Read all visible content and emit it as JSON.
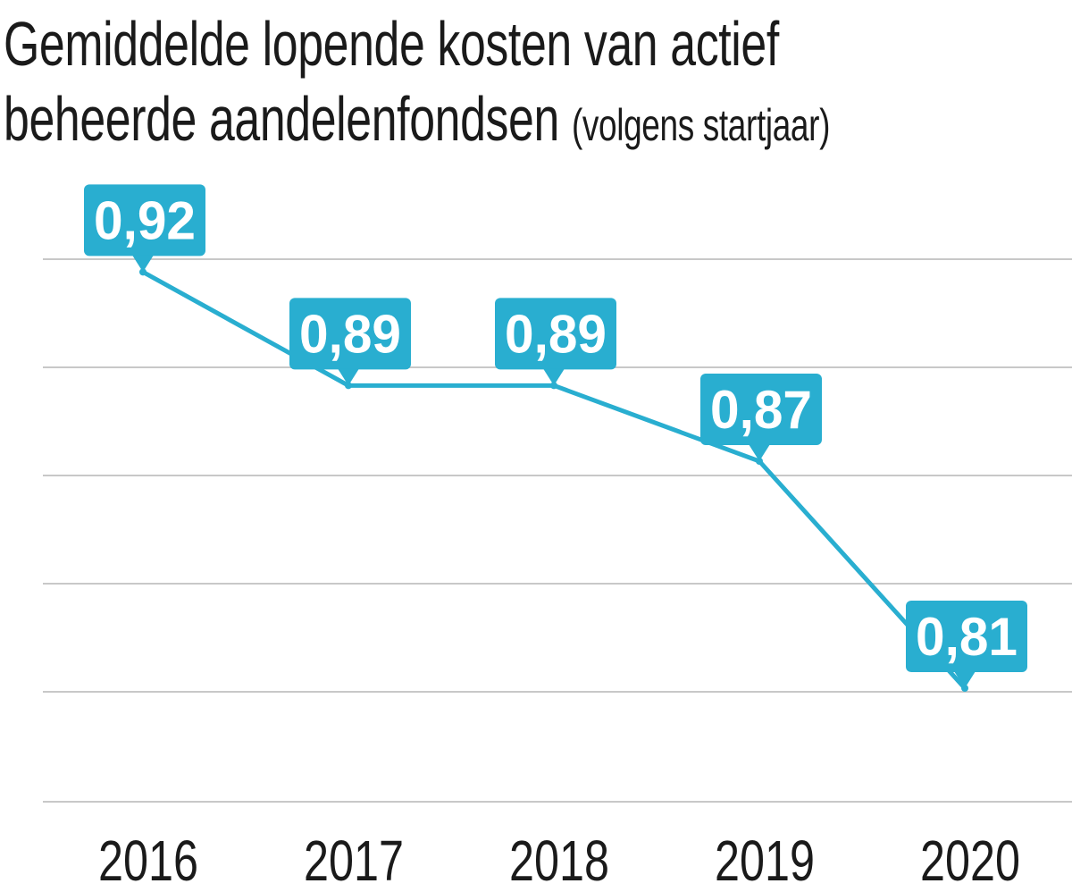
{
  "title": {
    "line1": "Gemiddelde lopende kosten van actief",
    "line2": "beheerde aandelenfondsen",
    "subtitle": "(volgens startjaar)"
  },
  "colors": {
    "accent": "#29aed0",
    "grid": "#c8c8c8",
    "text": "#1a1a1a",
    "label_text": "#ffffff"
  },
  "chart_data": {
    "type": "line",
    "title": "Gemiddelde lopende kosten van actief beheerde aandelenfondsen (volgens startjaar)",
    "xlabel": "",
    "ylabel": "",
    "categories": [
      "2016",
      "2017",
      "2018",
      "2019",
      "2020"
    ],
    "series": [
      {
        "values": [
          0.92,
          0.89,
          0.89,
          0.87,
          0.81
        ],
        "labels": [
          "0,92",
          "0,89",
          "0,89",
          "0,87",
          "0,81"
        ]
      }
    ],
    "ylim": [
      0.78,
      0.93
    ],
    "grid": true,
    "legend": "none"
  }
}
